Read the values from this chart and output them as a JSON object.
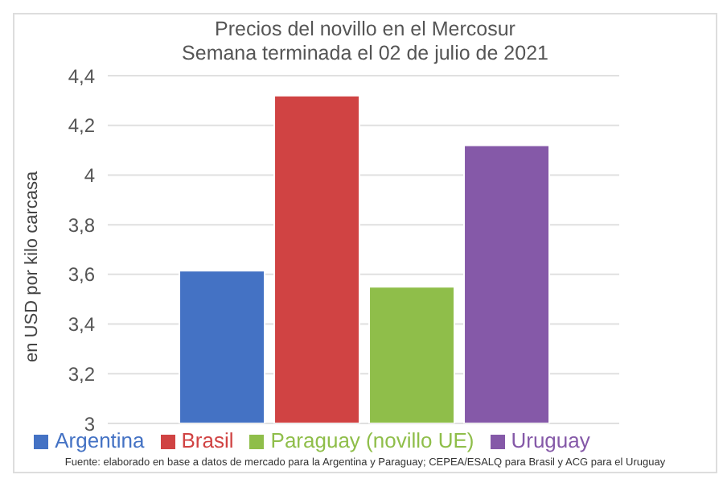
{
  "chart_data": {
    "type": "bar",
    "title": "Precios del novillo en el Mercosur",
    "subtitle": "Semana terminada el 02 de julio de 2021",
    "ylabel": "en USD por kilo carcasa",
    "categories": [
      null
    ],
    "series": [
      {
        "name": "Argentina",
        "color": "#4472c4",
        "values": [
          3.615
        ]
      },
      {
        "name": "Brasil",
        "color": "#d04343",
        "values": [
          4.32
        ]
      },
      {
        "name": "Paraguay (novillo UE)",
        "color": "#8fbe4a",
        "values": [
          3.55
        ]
      },
      {
        "name": "Uruguay",
        "color": "#8559a8",
        "values": [
          4.12
        ]
      }
    ],
    "ylim": [
      3,
      4.4
    ],
    "yticks": [
      3,
      {
        "value": 3.2,
        "label": "3,2"
      },
      {
        "value": 3.4,
        "label": "3,4"
      },
      {
        "value": 3.6,
        "label": "3,6"
      },
      {
        "value": 3.8,
        "label": "3,8"
      },
      {
        "value": 4,
        "label": "4"
      },
      {
        "value": 4.2,
        "label": "4,2"
      },
      {
        "value": 4.4,
        "label": "4,4"
      }
    ],
    "grid": "y",
    "legend": "bottom",
    "annotations": [
      "Fuente: elaborado en base a datos de mercado para la Argentina y Paraguay; CEPEA/ESALQ para Brasil y ACG para el Uruguay"
    ]
  }
}
